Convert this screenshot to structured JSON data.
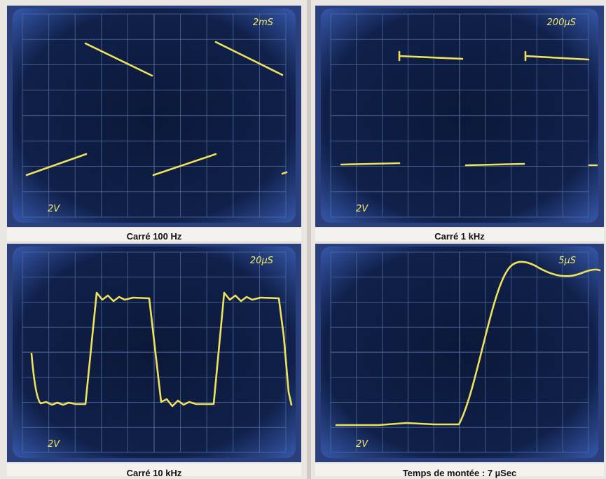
{
  "panels": [
    {
      "timebase": "2mS",
      "volts": "2V",
      "caption": "Carré 100 Hz"
    },
    {
      "timebase": "200µS",
      "volts": "2V",
      "caption": "Carré 1 kHz"
    },
    {
      "timebase": "20µS",
      "volts": "2V",
      "caption": "Carré 10 kHz"
    },
    {
      "timebase": "5µS",
      "volts": "2V",
      "caption": "Temps de montée : 7 µSec"
    }
  ]
}
